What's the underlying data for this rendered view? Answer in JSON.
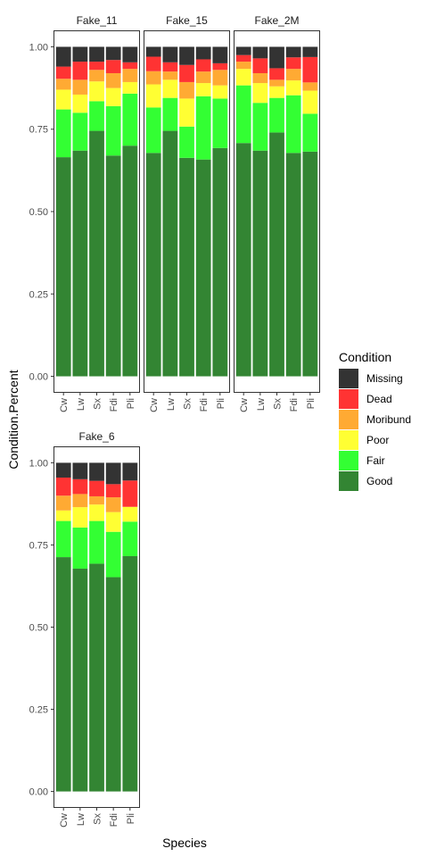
{
  "chart_data": {
    "type": "bar",
    "stacked": true,
    "xlabel": "Species",
    "ylabel": "Condition.Percent",
    "ylim": [
      0,
      1
    ],
    "yticks": [
      "0.00",
      "0.25",
      "0.50",
      "0.75",
      "1.00"
    ],
    "categories": [
      "Cw",
      "Lw",
      "Sx",
      "Fdi",
      "Pli"
    ],
    "legend": {
      "title": "Condition",
      "position": "right",
      "entries": [
        {
          "name": "Missing",
          "color": "#333333"
        },
        {
          "name": "Dead",
          "color": "#FF3333"
        },
        {
          "name": "Moribund",
          "color": "#FFAA33"
        },
        {
          "name": "Poor",
          "color": "#FFFF33"
        },
        {
          "name": "Fair",
          "color": "#33FF33"
        },
        {
          "name": "Good",
          "color": "#338533"
        }
      ]
    },
    "stack_order_bottom_to_top": [
      "Good",
      "Fair",
      "Poor",
      "Moribund",
      "Dead",
      "Missing"
    ],
    "panels": [
      {
        "title": "Fake_11",
        "series": [
          {
            "name": "Good",
            "values": [
              0.665,
              0.685,
              0.745,
              0.67,
              0.7
            ]
          },
          {
            "name": "Fair",
            "values": [
              0.145,
              0.115,
              0.09,
              0.15,
              0.158
            ]
          },
          {
            "name": "Poor",
            "values": [
              0.06,
              0.055,
              0.06,
              0.055,
              0.035
            ]
          },
          {
            "name": "Moribund",
            "values": [
              0.033,
              0.045,
              0.035,
              0.045,
              0.04
            ]
          },
          {
            "name": "Dead",
            "values": [
              0.037,
              0.055,
              0.025,
              0.04,
              0.02
            ]
          },
          {
            "name": "Missing",
            "values": [
              0.06,
              0.045,
              0.045,
              0.04,
              0.047
            ]
          }
        ]
      },
      {
        "title": "Fake_15",
        "series": [
          {
            "name": "Good",
            "values": [
              0.678,
              0.745,
              0.663,
              0.658,
              0.693
            ]
          },
          {
            "name": "Fair",
            "values": [
              0.138,
              0.1,
              0.095,
              0.192,
              0.15
            ]
          },
          {
            "name": "Poor",
            "values": [
              0.07,
              0.055,
              0.085,
              0.04,
              0.04
            ]
          },
          {
            "name": "Moribund",
            "values": [
              0.04,
              0.025,
              0.05,
              0.035,
              0.047
            ]
          },
          {
            "name": "Dead",
            "values": [
              0.044,
              0.028,
              0.052,
              0.037,
              0.02
            ]
          },
          {
            "name": "Missing",
            "values": [
              0.03,
              0.047,
              0.055,
              0.038,
              0.05
            ]
          }
        ]
      },
      {
        "title": "Fake_2M",
        "series": [
          {
            "name": "Good",
            "values": [
              0.708,
              0.685,
              0.74,
              0.678,
              0.682
            ]
          },
          {
            "name": "Fair",
            "values": [
              0.175,
              0.145,
              0.105,
              0.175,
              0.115
            ]
          },
          {
            "name": "Poor",
            "values": [
              0.05,
              0.06,
              0.035,
              0.045,
              0.07
            ]
          },
          {
            "name": "Moribund",
            "values": [
              0.022,
              0.03,
              0.02,
              0.035,
              0.025
            ]
          },
          {
            "name": "Dead",
            "values": [
              0.02,
              0.045,
              0.035,
              0.035,
              0.077
            ]
          },
          {
            "name": "Missing",
            "values": [
              0.025,
              0.035,
              0.065,
              0.032,
              0.031
            ]
          }
        ]
      },
      {
        "title": "Fake_6",
        "series": [
          {
            "name": "Good",
            "values": [
              0.713,
              0.678,
              0.693,
              0.652,
              0.716
            ]
          },
          {
            "name": "Fair",
            "values": [
              0.11,
              0.125,
              0.13,
              0.138,
              0.105
            ]
          },
          {
            "name": "Poor",
            "values": [
              0.032,
              0.062,
              0.05,
              0.06,
              0.045
            ]
          },
          {
            "name": "Moribund",
            "values": [
              0.045,
              0.04,
              0.025,
              0.045,
              0.0
            ]
          },
          {
            "name": "Dead",
            "values": [
              0.055,
              0.045,
              0.047,
              0.04,
              0.08
            ]
          },
          {
            "name": "Missing",
            "values": [
              0.045,
              0.05,
              0.055,
              0.065,
              0.054
            ]
          }
        ]
      }
    ]
  }
}
